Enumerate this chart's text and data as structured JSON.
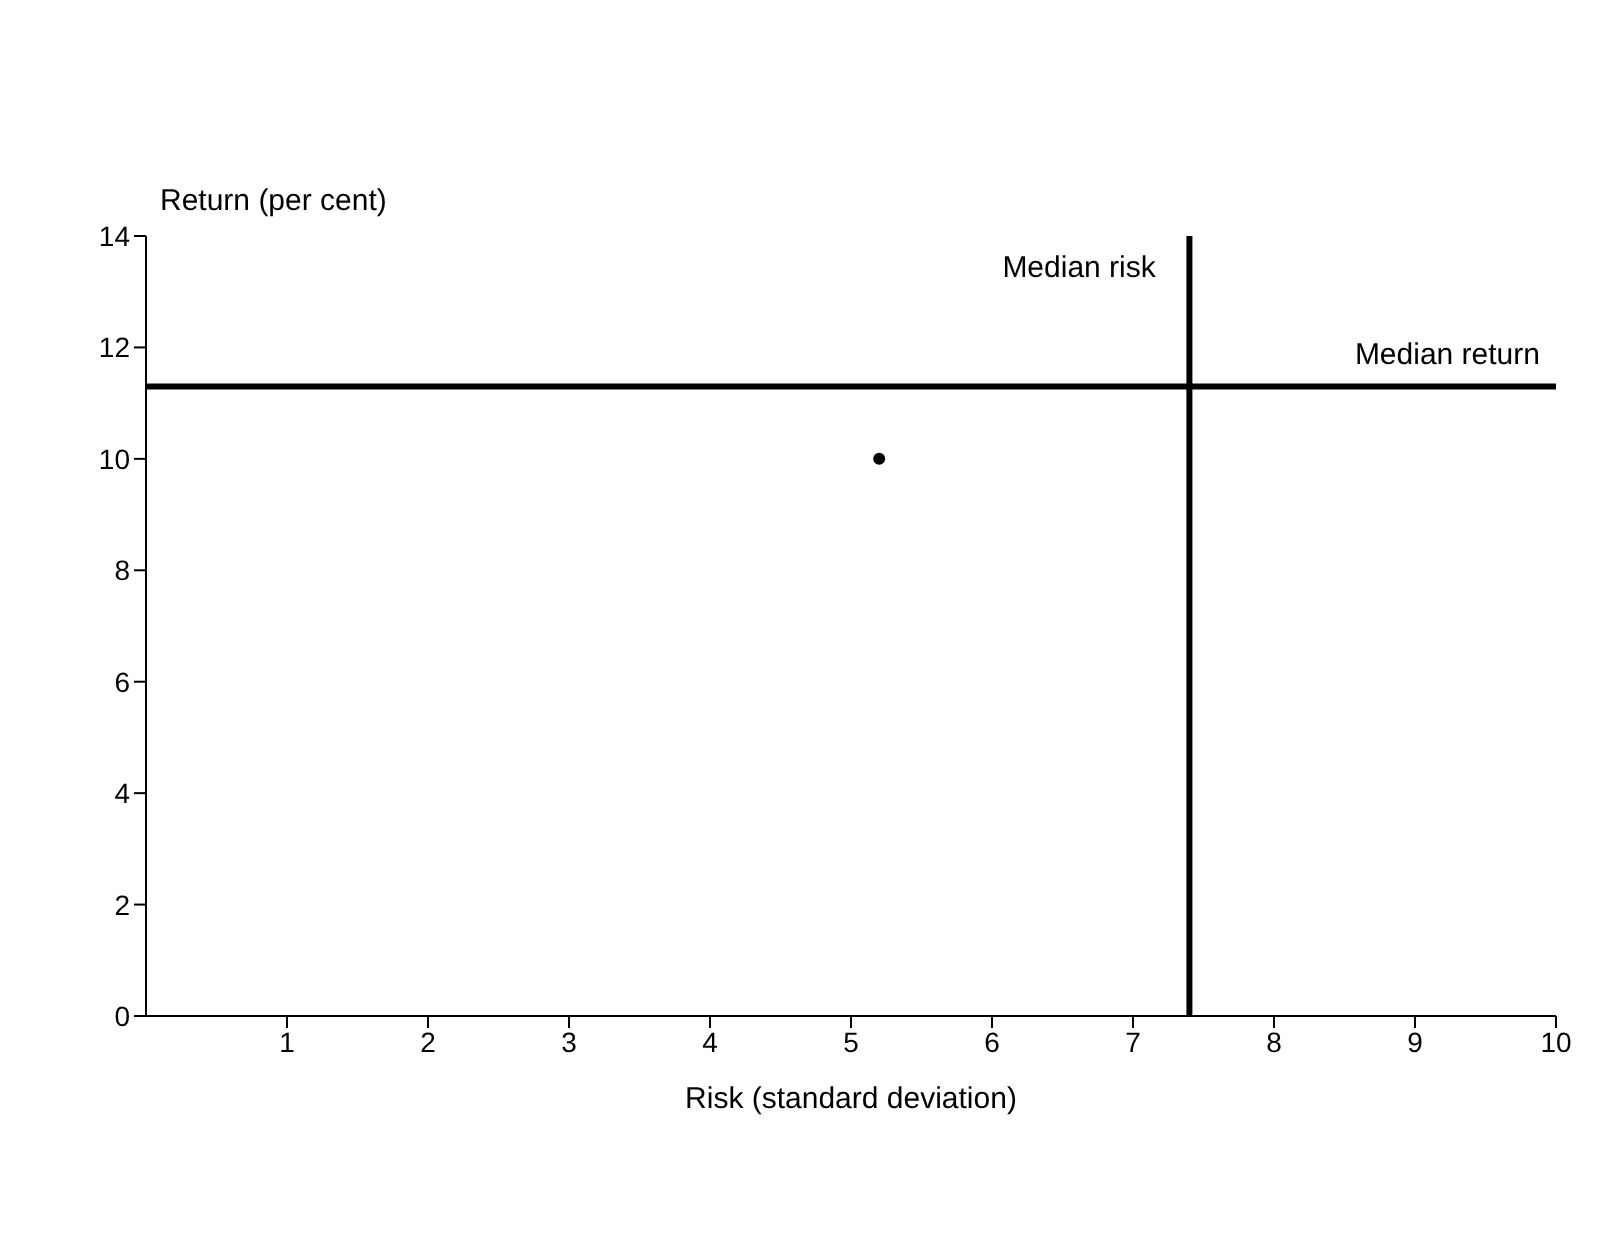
{
  "chart_data": {
    "type": "scatter",
    "xlabel": "Risk (standard deviation)",
    "ylabel": "Return (per cent)",
    "x": [
      5.2
    ],
    "series": [
      {
        "color": "#000000",
        "values": [
          10.0
        ]
      }
    ],
    "xlim": [
      0,
      10
    ],
    "xticks": [
      1,
      2,
      3,
      4,
      5,
      6,
      7,
      8,
      9,
      10
    ],
    "ylim": [
      0,
      14
    ],
    "yticks": [
      0,
      2,
      4,
      6,
      8,
      10,
      12,
      14
    ],
    "ref_lines": [
      {
        "axis": "x",
        "value": 7.4,
        "label": "Median risk",
        "color": "#000000"
      },
      {
        "axis": "y",
        "value": 11.3,
        "label": "Median return",
        "color": "#000000"
      }
    ],
    "grid": false,
    "legend": false,
    "marker": "circle"
  }
}
